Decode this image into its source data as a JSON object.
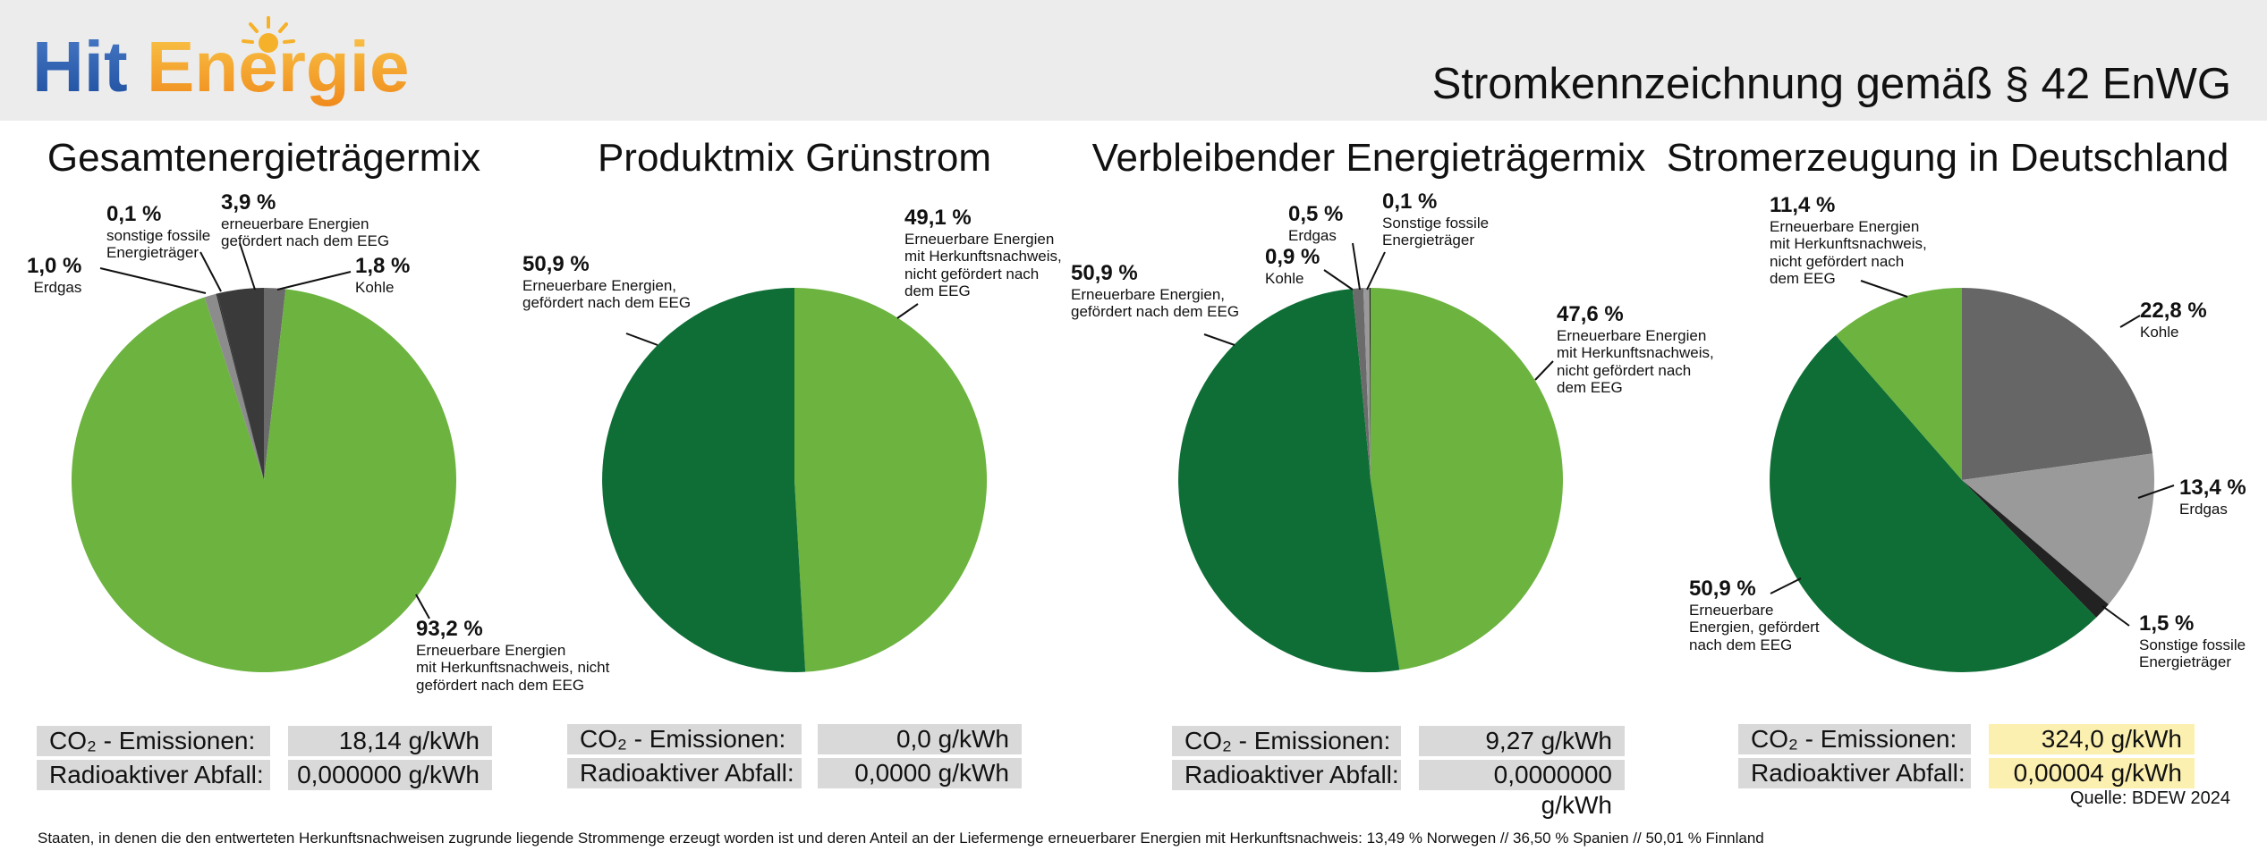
{
  "header": {
    "logo_hit": "Hit",
    "logo_energie": "Energie",
    "title": "Stromkennzeichnung gemäß § 42 EnWG"
  },
  "colors": {
    "light_green": "#6cb33f",
    "dark_green": "#0e6e36",
    "dark_gray": "#3a3a3a",
    "mid_gray": "#8c8c8c",
    "gray_66": "#6b6b6b",
    "highlight": "#fcf0b0"
  },
  "chart_data": [
    {
      "type": "pie",
      "title": "Gesamtenergieträgermix",
      "slices": [
        {
          "pct": "1,8 %",
          "desc": "Kohle",
          "value": 1.8,
          "color": "#6b6b6b"
        },
        {
          "pct": "93,2 %",
          "desc": "Erneuerbare Energien\nmit Herkunftsnachweis, nicht\ngefördert nach dem EEG",
          "value": 93.2,
          "color": "#6cb33f"
        },
        {
          "pct": "1,0 %",
          "desc": "Erdgas",
          "value": 1.0,
          "color": "#8c8c8c"
        },
        {
          "pct": "0,1 %",
          "desc": "sonstige fossile\nEnergieträger",
          "value": 0.1,
          "color": "#2b2b2b"
        },
        {
          "pct": "3,9 %",
          "desc": "erneuerbare Energien\ngefördert nach dem EEG",
          "value": 3.9,
          "color": "#3a3a3a"
        }
      ],
      "metrics": {
        "co2_label": "CO₂ - Emissionen:",
        "co2_value": "18,14 g/kWh",
        "waste_label": "Radioaktiver Abfall:",
        "waste_value": "0,000000 g/kWh"
      }
    },
    {
      "type": "pie",
      "title": "Produktmix Grünstrom",
      "slices": [
        {
          "pct": "49,1 %",
          "desc": "Erneuerbare Energien\nmit Herkunftsnachweis,\nnicht gefördert nach\ndem EEG",
          "value": 49.1,
          "color": "#6cb33f"
        },
        {
          "pct": "50,9 %",
          "desc": "Erneuerbare Energien,\ngefördert nach dem EEG",
          "value": 50.9,
          "color": "#0e6e36"
        }
      ],
      "metrics": {
        "co2_label": "CO₂ - Emissionen:",
        "co2_value": "0,0 g/kWh",
        "waste_label": "Radioaktiver Abfall:",
        "waste_value": "0,0000 g/kWh"
      }
    },
    {
      "type": "pie",
      "title": "Verbleibender Energieträgermix",
      "slices": [
        {
          "pct": "47,6 %",
          "desc": "Erneuerbare Energien\nmit Herkunftsnachweis,\nnicht gefördert nach\ndem EEG",
          "value": 47.6,
          "color": "#6cb33f"
        },
        {
          "pct": "50,9 %",
          "desc": "Erneuerbare Energien,\ngefördert nach dem EEG",
          "value": 50.9,
          "color": "#0e6e36"
        },
        {
          "pct": "0,9 %",
          "desc": "Kohle",
          "value": 0.9,
          "color": "#6b6b6b"
        },
        {
          "pct": "0,5 %",
          "desc": "Erdgas",
          "value": 0.5,
          "color": "#9a9a9a"
        },
        {
          "pct": "0,1 %",
          "desc": "Sonstige fossile\nEnergieträger",
          "value": 0.1,
          "color": "#2b2b2b"
        }
      ],
      "metrics": {
        "co2_label": "CO₂ - Emissionen:",
        "co2_value": "9,27 g/kWh",
        "waste_label": "Radioaktiver Abfall:",
        "waste_value": "0,0000000 g/kWh"
      }
    },
    {
      "type": "pie",
      "title": "Stromerzeugung in Deutschland",
      "slices": [
        {
          "pct": "22,8 %",
          "desc": "Kohle",
          "value": 22.8,
          "color": "#666666"
        },
        {
          "pct": "13,4 %",
          "desc": "Erdgas",
          "value": 13.4,
          "color": "#9a9a9a"
        },
        {
          "pct": "1,5 %",
          "desc": "Sonstige fossile\nEnergieträger",
          "value": 1.5,
          "color": "#222222"
        },
        {
          "pct": "50,9 %",
          "desc": "Erneuerbare\nEnergien, gefördert\nnach dem EEG",
          "value": 50.9,
          "color": "#0e6e36"
        },
        {
          "pct": "11,4 %",
          "desc": "Erneuerbare Energien\nmit Herkunftsnachweis,\nnicht gefördert nach\ndem EEG",
          "value": 11.4,
          "color": "#6cb33f"
        }
      ],
      "metrics": {
        "co2_label": "CO₂ - Emissionen:",
        "co2_value": "324,0 g/kWh",
        "waste_label": "Radioaktiver Abfall:",
        "waste_value": "0,00004 g/kWh"
      }
    }
  ],
  "source": "Quelle: BDEW 2024",
  "footnote": "Staaten, in denen die den entwerteten Herkunftsnachweisen zugrunde liegende Strommenge erzeugt worden ist und deren Anteil an der Liefermenge erneuerbarer Energien mit Herkunftsnachweis: 13,49 % Norwegen // 36,50 % Spanien // 50,01 % Finnland"
}
